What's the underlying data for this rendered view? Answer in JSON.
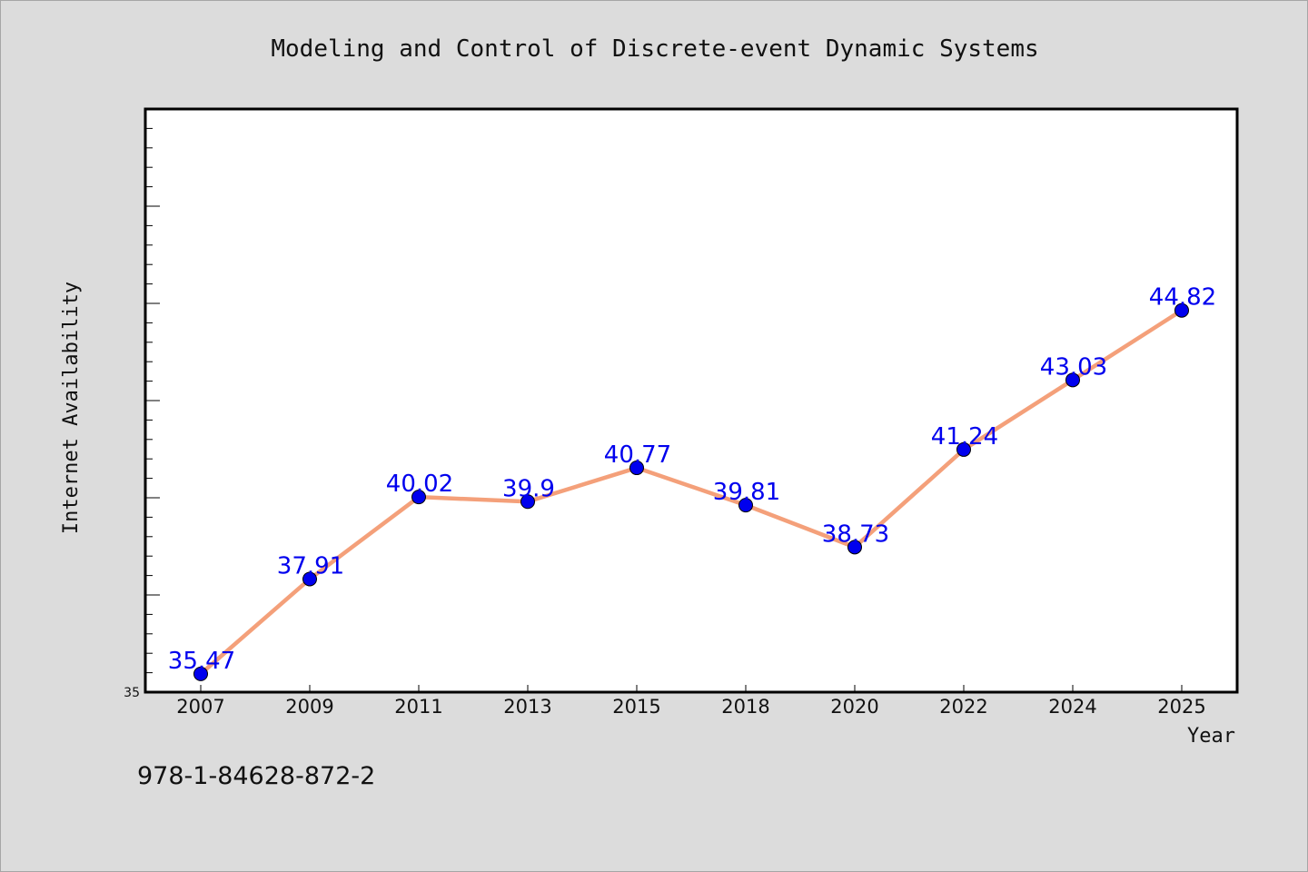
{
  "chart_data": {
    "type": "line",
    "title": "Modeling and Control of Discrete-event Dynamic Systems",
    "xlabel": "Year",
    "ylabel": "Internet Availability",
    "categories": [
      "2007",
      "2009",
      "2011",
      "2013",
      "2015",
      "2018",
      "2020",
      "2022",
      "2024",
      "2025"
    ],
    "series": [
      {
        "values": [
          35.47,
          37.91,
          40.02,
          39.9,
          40.77,
          39.81,
          38.73,
          41.24,
          43.03,
          44.82
        ]
      }
    ],
    "ylim": [
      35,
      50
    ],
    "ytick_labels": [
      "35"
    ],
    "grid": false,
    "line_color": "#f4a07a",
    "marker_color": "#0000ee",
    "label_color": "#0000ee"
  },
  "footer": {
    "text": "978-1-84628-872-2"
  }
}
